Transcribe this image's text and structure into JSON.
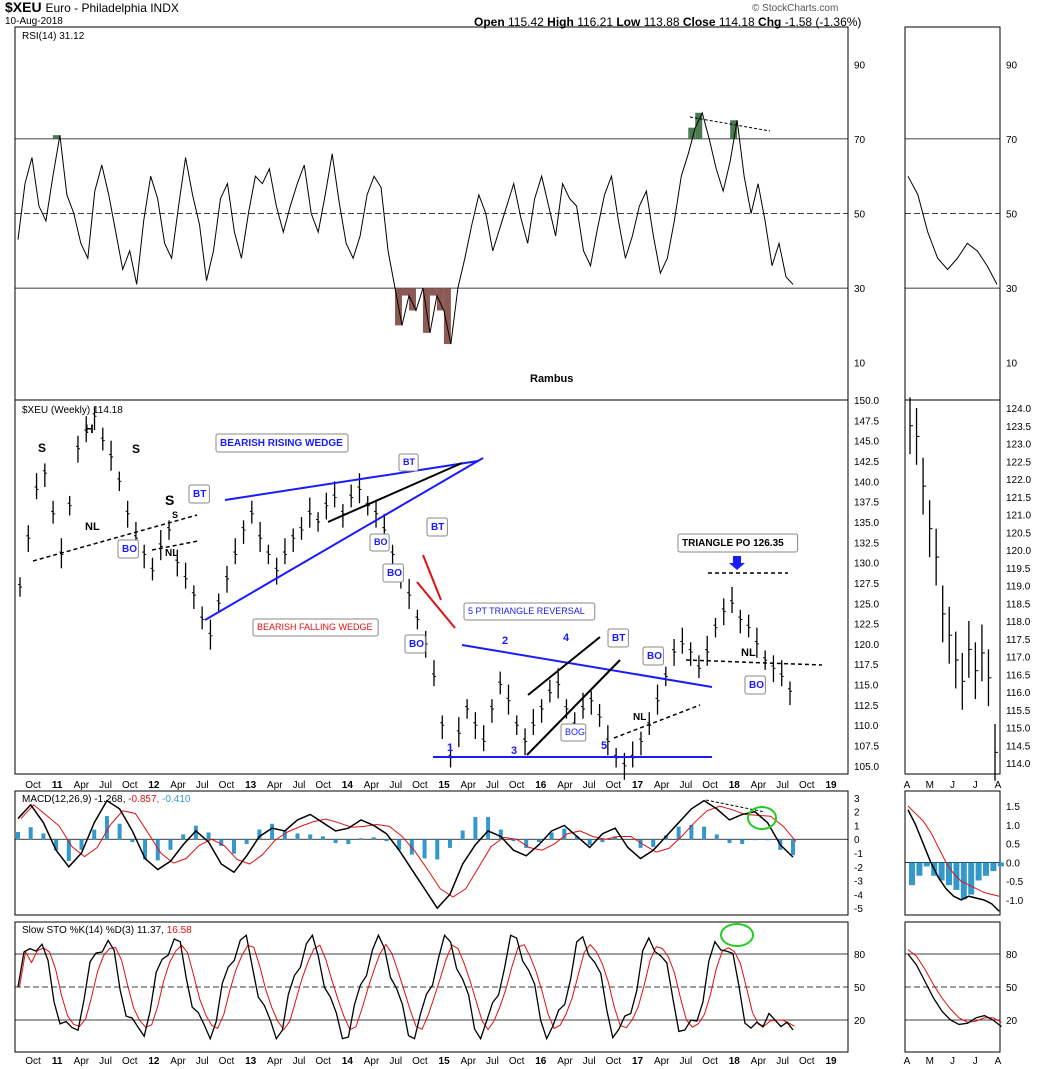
{
  "header": {
    "symbol": "$XEU",
    "name": "Euro - Philadelphia INDX",
    "date": "10-Aug-2018",
    "ohlc_label": "Open",
    "open": "115.42",
    "high_label": "High",
    "high": "116.21",
    "low_label": "Low",
    "low": "113.88",
    "close_label": "Close",
    "close": "114.18",
    "chg_label": "Chg",
    "chg": "-1.58 (-1.36%)",
    "copyright": "© StockCharts.com"
  },
  "colors": {
    "price_bar": "#000000",
    "blue_line": "#1a1aff",
    "red_line": "#e01010",
    "rsi_oversold_fill": "#8b5a55",
    "rsi_overbought_fill": "#4a7a50",
    "macd_hist": "#3399cc",
    "signal": "#e01010",
    "grid": "#000000",
    "circle": "#22cc22"
  },
  "chart_data": [
    {
      "type": "line",
      "panel": "rsi",
      "title": "RSI(14) 31.12",
      "ylim": [
        0,
        100
      ],
      "reference_lines": [
        30,
        50,
        70
      ],
      "ticks": [
        "90",
        "70",
        "50",
        "30",
        "10"
      ],
      "tick_values": [
        90,
        70,
        50,
        30,
        10
      ],
      "annotation": "Rambus",
      "series": [
        {
          "values": [
            43,
            58,
            65,
            52,
            48,
            60,
            71,
            55,
            50,
            42,
            38,
            56,
            63,
            55,
            45,
            35,
            40,
            31,
            48,
            60,
            54,
            42,
            38,
            52,
            65,
            55,
            47,
            32,
            40,
            54,
            58,
            45,
            38,
            50,
            60,
            58,
            62,
            52,
            45,
            52,
            58,
            63,
            50,
            45,
            55,
            66,
            53,
            42,
            38,
            44,
            55,
            60,
            57,
            40,
            30,
            20,
            28,
            24,
            30,
            18,
            28,
            24,
            15,
            30,
            38,
            47,
            55,
            50,
            40,
            46,
            52,
            58,
            49,
            42,
            54,
            60,
            52,
            44,
            58,
            54,
            52,
            40,
            36,
            46,
            55,
            60,
            48,
            38,
            44,
            52,
            56,
            44,
            34,
            38,
            48,
            60,
            66,
            73,
            77,
            70,
            62,
            56,
            64,
            75,
            60,
            50,
            58,
            48,
            36,
            42,
            33,
            31
          ]
        }
      ]
    },
    {
      "type": "line",
      "panel": "price_weekly",
      "title": "$XEU (Weekly) 114.18",
      "ylim": [
        104,
        150
      ],
      "ticks": [
        "150.0",
        "147.5",
        "145.0",
        "142.5",
        "140.0",
        "137.5",
        "135.0",
        "132.5",
        "130.0",
        "127.5",
        "125.0",
        "122.5",
        "120.0",
        "117.5",
        "115.0",
        "112.5",
        "110.0",
        "107.5",
        "105.0"
      ],
      "tick_values": [
        150,
        147.5,
        145,
        142.5,
        140,
        137.5,
        135,
        132.5,
        130,
        127.5,
        125,
        122.5,
        120,
        117.5,
        115,
        112.5,
        110,
        107.5,
        105
      ],
      "xaxis_labels": [
        "Oct",
        "11",
        "Apr",
        "Jul",
        "Oct",
        "12",
        "Apr",
        "Jul",
        "Oct",
        "13",
        "Apr",
        "Jul",
        "Oct",
        "14",
        "Apr",
        "Jul",
        "Oct",
        "15",
        "Apr",
        "Jul",
        "Oct",
        "16",
        "Apr",
        "Jul",
        "Oct",
        "17",
        "Apr",
        "Jul",
        "Oct",
        "18",
        "Apr",
        "Jul",
        "Oct",
        "19"
      ],
      "series": [
        {
          "name": "$XEU",
          "values": [
            127,
            133,
            139,
            141,
            136,
            131,
            137,
            144,
            146,
            148,
            145,
            143,
            140,
            136,
            133,
            131,
            129,
            132,
            134,
            130,
            128,
            126,
            123,
            121,
            125,
            128,
            131,
            134,
            136,
            133,
            131,
            129,
            131,
            133,
            134,
            136,
            135,
            137,
            138,
            136,
            138,
            139,
            137,
            136,
            134,
            131,
            128,
            126,
            123,
            120,
            116,
            110,
            106,
            109,
            112,
            110,
            108,
            112,
            115,
            113,
            110,
            108,
            110,
            112,
            114,
            115,
            112,
            110,
            112,
            113,
            111,
            108,
            106,
            105,
            106,
            108,
            110,
            113,
            116,
            119,
            120,
            119,
            117,
            119,
            122,
            124,
            125,
            123,
            122,
            120,
            118,
            117,
            116,
            114.18
          ]
        }
      ],
      "annotations": [
        "S",
        "H",
        "S",
        "NL",
        "BO",
        "S",
        "S",
        "BT",
        "NL",
        "BEARISH RISING WEDGE",
        "BT",
        "BO",
        "BO",
        "BT",
        "BEARISH FALLING WEDGE",
        "BO",
        "5 PT TRIANGLE REVERSAL",
        "1",
        "2",
        "3",
        "4",
        "5",
        "BT",
        "BOG",
        "NL",
        "BO",
        "TRIANGLE PO 126.35",
        "NL",
        "BO"
      ]
    },
    {
      "type": "line",
      "panel": "macd",
      "title": "MACD(12,26,9)",
      "values_text": [
        "-1.268",
        "-0.857",
        "-0.410"
      ],
      "ylim": [
        -5.5,
        3.5
      ],
      "ticks": [
        "3",
        "2",
        "1",
        "0",
        "-1",
        "-2",
        "-3",
        "-4",
        "-5"
      ],
      "tick_values": [
        3,
        2,
        1,
        0,
        -1,
        -2,
        -3,
        -4,
        -5
      ]
    },
    {
      "type": "line",
      "panel": "slow_sto",
      "title": "Slow STO %K(14) %D(3)",
      "values_text": [
        "11.37",
        "16.58"
      ],
      "ylim": [
        0,
        100
      ],
      "ticks": [
        "80",
        "50",
        "20"
      ],
      "tick_values": [
        80,
        50,
        20
      ]
    },
    {
      "type": "line",
      "panel": "daily_inset",
      "price_ticks": [
        "124.0",
        "123.5",
        "123.0",
        "122.5",
        "122.0",
        "121.5",
        "121.0",
        "120.5",
        "120.0",
        "119.5",
        "119.0",
        "118.5",
        "118.0",
        "117.5",
        "117.0",
        "116.5",
        "116.0",
        "115.5",
        "115.0",
        "114.5",
        "114.0"
      ],
      "price_tick_values": [
        124,
        123.5,
        123,
        122.5,
        122,
        121.5,
        121,
        120.5,
        120,
        119.5,
        119,
        118.5,
        118,
        117.5,
        117,
        116.5,
        116,
        115.5,
        115,
        114.5,
        114
      ],
      "xaxis_labels": [
        "A",
        "M",
        "J",
        "J",
        "A"
      ],
      "rsi_ticks": [
        "90",
        "70",
        "50",
        "30",
        "10"
      ],
      "macd_ticks": [
        "1.5",
        "1.0",
        "0.5",
        "0.0",
        "-0.5",
        "-1.0"
      ],
      "macd_tick_values": [
        1.5,
        1.0,
        0.5,
        0.0,
        -0.5,
        -1.0
      ],
      "sto_ticks": [
        "80",
        "50",
        "20"
      ]
    }
  ]
}
